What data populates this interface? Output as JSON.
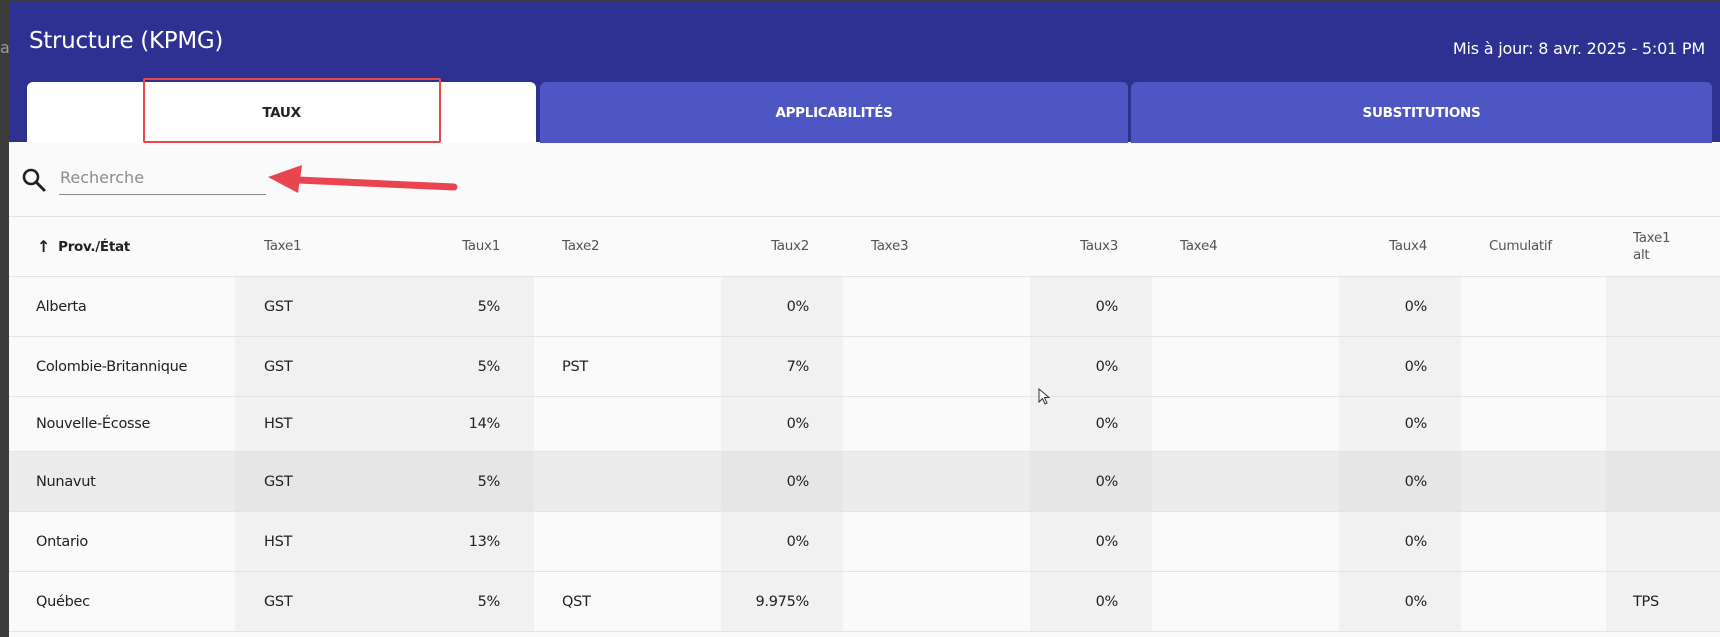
{
  "edge_text": "a",
  "app": {
    "title": "Structure (KPMG)",
    "updated": "Mis à jour: 8 avr. 2025 - 5:01 PM"
  },
  "tabs": [
    {
      "label": "TAUX",
      "active": true
    },
    {
      "label": "APPLICABILITÉS",
      "active": false
    },
    {
      "label": "SUBSTITUTIONS",
      "active": false
    }
  ],
  "search": {
    "placeholder": "Recherche",
    "value": ""
  },
  "table": {
    "sort_indicator": "↑",
    "headers": [
      "Prov./État",
      "Taxe1",
      "Taux1",
      "Taxe2",
      "Taux2",
      "Taxe3",
      "Taux3",
      "Taxe4",
      "Taux4",
      "Cumulatif",
      "Taxe1\nalt"
    ],
    "rows": [
      [
        "Alberta",
        "GST",
        "5%",
        "",
        "0%",
        "",
        "0%",
        "",
        "0%",
        "",
        ""
      ],
      [
        "Colombie-Britannique",
        "GST",
        "5%",
        "PST",
        "7%",
        "",
        "0%",
        "",
        "0%",
        "",
        ""
      ],
      [
        "Nouvelle-Écosse",
        "HST",
        "14%",
        "",
        "0%",
        "",
        "0%",
        "",
        "0%",
        "",
        ""
      ],
      [
        "Nunavut",
        "GST",
        "5%",
        "",
        "0%",
        "",
        "0%",
        "",
        "0%",
        "",
        ""
      ],
      [
        "Ontario",
        "HST",
        "13%",
        "",
        "0%",
        "",
        "0%",
        "",
        "0%",
        "",
        ""
      ],
      [
        "Québec",
        "GST",
        "5%",
        "QST",
        "9.975%",
        "",
        "0%",
        "",
        "0%",
        "",
        "TPS"
      ]
    ],
    "selected_row": 3
  },
  "colors": {
    "header_bg": "#2e3192",
    "inactive_tab": "#4e56c4",
    "annotation": "#e8454f"
  }
}
